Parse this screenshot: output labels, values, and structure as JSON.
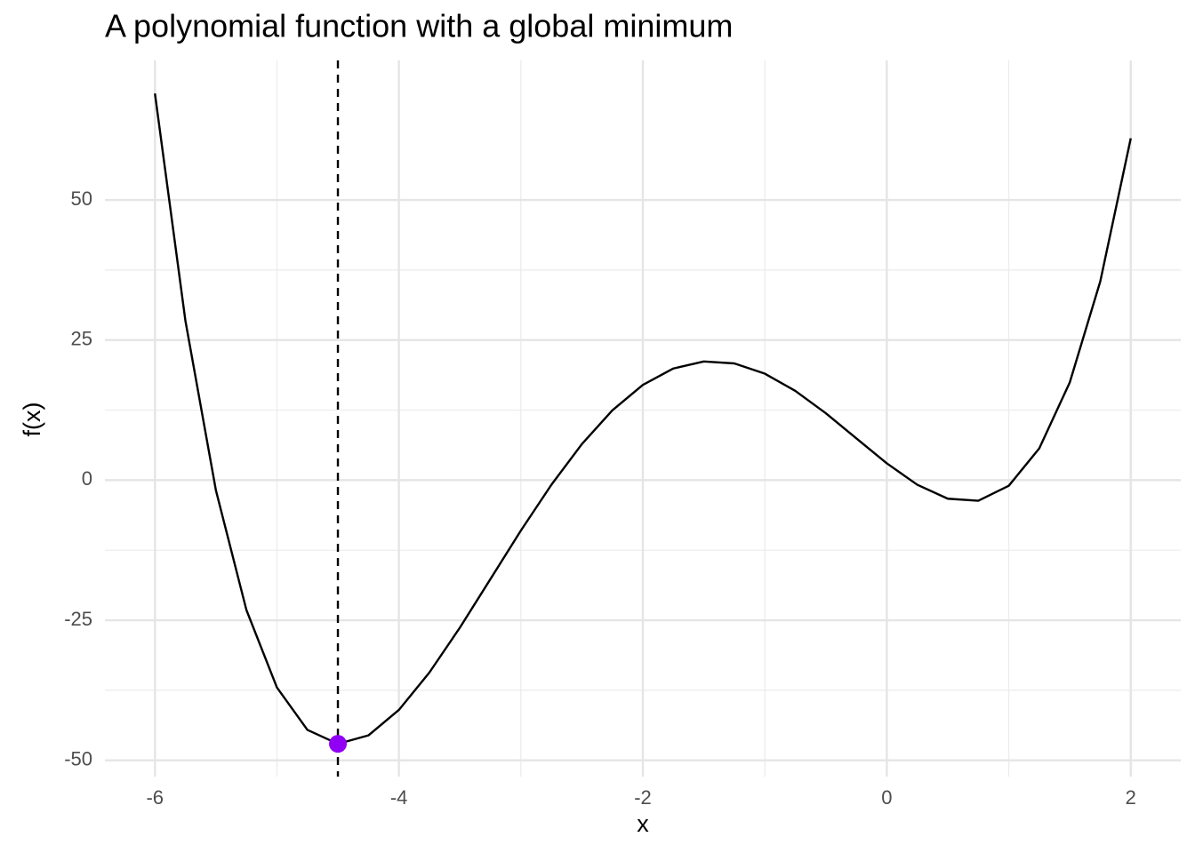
{
  "chart_data": {
    "type": "line",
    "title": "A polynomial function with a global minimum",
    "x_label": "x",
    "y_label": "f(x)",
    "x": [
      -6,
      -5.75,
      -5.5,
      -5.25,
      -5,
      -4.75,
      -4.5,
      -4.25,
      -4,
      -3.75,
      -3.5,
      -3.25,
      -3,
      -2.75,
      -2.5,
      -2.25,
      -2,
      -1.75,
      -1.5,
      -1.25,
      -1,
      -0.75,
      -0.5,
      -0.25,
      0,
      0.25,
      0.5,
      0.75,
      1,
      1.25,
      1.5,
      1.75,
      2
    ],
    "series": [
      {
        "color": "#000000",
        "values": [
          69,
          28.43,
          -1.82,
          -23.17,
          -37,
          -44.57,
          -47.06,
          -45.55,
          -41,
          -34.33,
          -26.32,
          -17.67,
          -9,
          -0.83,
          6.43,
          12.46,
          17,
          19.92,
          21.18,
          20.83,
          19,
          15.93,
          11.94,
          7.46,
          3,
          -0.82,
          -3.31,
          -3.67,
          -1,
          5.67,
          17.44,
          35.46,
          61
        ]
      }
    ],
    "minimum": {
      "x": -4.5,
      "y": -47.06,
      "color": "#8f00f5"
    },
    "xlim": [
      -6.41,
      2.41
    ],
    "ylim": [
      -52.9,
      74.9
    ],
    "xticks": [
      -6,
      -4,
      -2,
      0,
      2
    ],
    "yticks": [
      -50,
      -25,
      0,
      25,
      50
    ],
    "grid": true
  }
}
